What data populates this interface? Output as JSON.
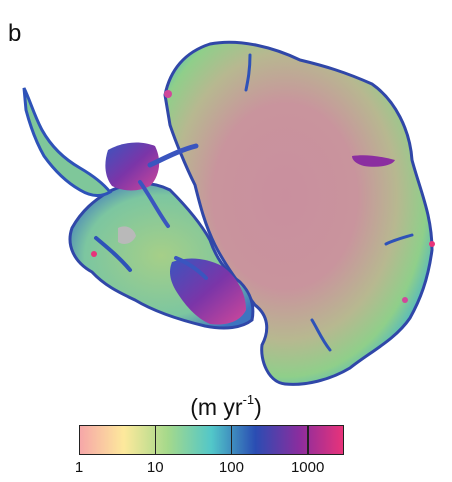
{
  "panel_label": "b",
  "legend": {
    "unit_main": "(m yr",
    "unit_sup": "-1",
    "unit_end": ")",
    "ticks": [
      "1",
      "10",
      "100",
      "1000"
    ],
    "scale": "log",
    "range": [
      1,
      3000
    ],
    "colors": [
      "#f6a7a8",
      "#fde99c",
      "#a5d98b",
      "#52c7c9",
      "#2a4db3",
      "#8a2d9e",
      "#e8337a"
    ]
  },
  "map": {
    "land_colors": {
      "interior": "#c98f9e",
      "mid": "#8fcf8a",
      "fast": "#2e52b8",
      "very_fast": "#8b2ea0",
      "ice_shelf": "#d0489a",
      "no_data": "#b9b9b9"
    }
  }
}
